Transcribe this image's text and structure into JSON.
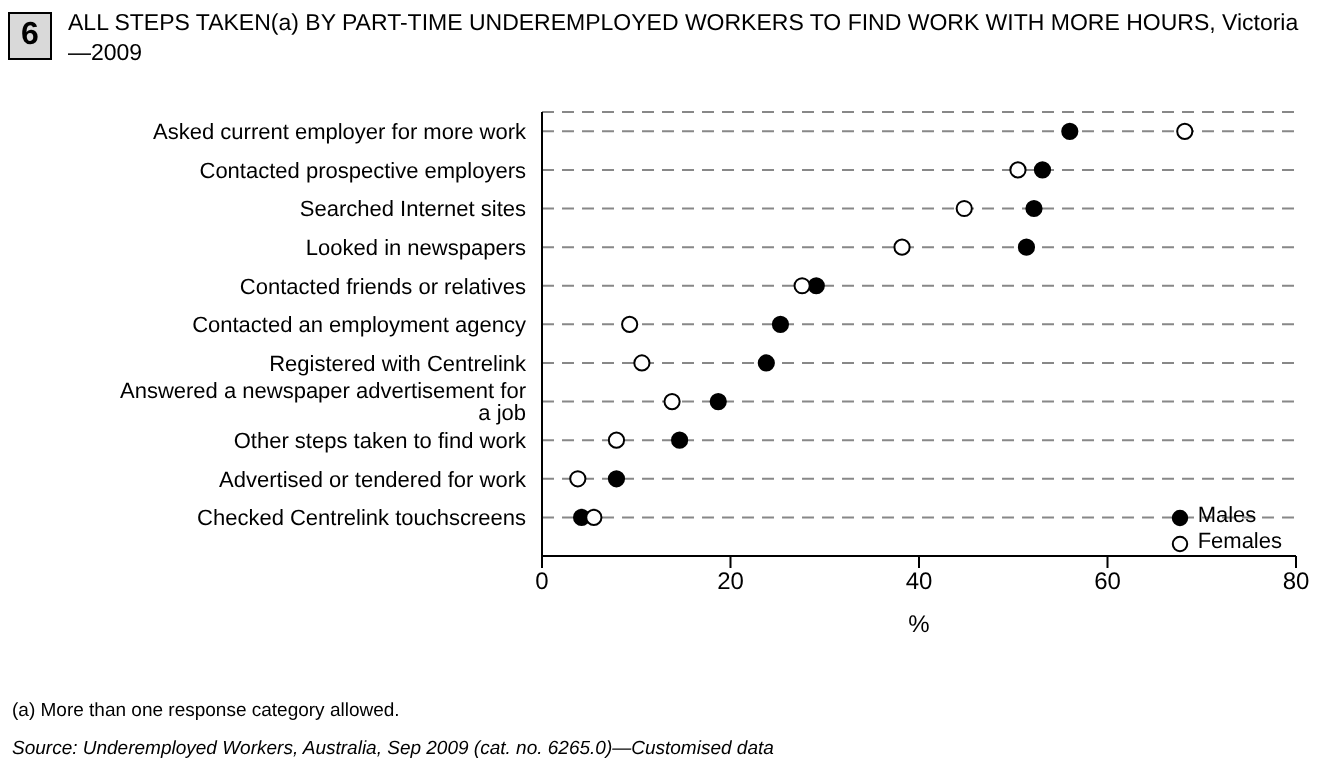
{
  "chart_data": {
    "type": "scatter",
    "title": "ALL STEPS TAKEN(a) BY PART-TIME UNDEREMPLOYED WORKERS TO FIND WORK WITH MORE HOURS, Victoria—2009",
    "xlabel": "%",
    "orientation": "horizontal",
    "categories": [
      "Asked current employer for more work",
      "Contacted prospective employers",
      "Searched Internet sites",
      "Looked in newspapers",
      "Contacted friends or relatives",
      "Contacted an employment agency",
      "Registered with Centrelink",
      "Answered a newspaper advertisement for a job",
      "Other steps taken to find work",
      "Advertised or tendered for work",
      "Checked Centrelink touchscreens"
    ],
    "series": [
      {
        "name": "Males",
        "color": "#000000",
        "values": [
          56.0,
          53.1,
          52.2,
          51.4,
          29.1,
          25.3,
          23.8,
          18.7,
          14.6,
          7.9,
          4.2
        ]
      },
      {
        "name": "Females",
        "color": "#ffffff",
        "values": [
          68.2,
          50.5,
          44.8,
          38.2,
          27.6,
          9.3,
          10.6,
          13.8,
          7.9,
          3.8,
          5.5
        ]
      }
    ],
    "xlim": [
      0,
      80
    ],
    "xticks": [
      0,
      20,
      40,
      60,
      80
    ],
    "grid": "y",
    "legend": "bottom right",
    "marker": "circle",
    "annotations": [
      "6",
      "(a) More than one response category allowed.",
      "Source: Underemployed Workers, Australia, Sep 2009 (cat. no. 6265.0)—Customised data"
    ]
  }
}
